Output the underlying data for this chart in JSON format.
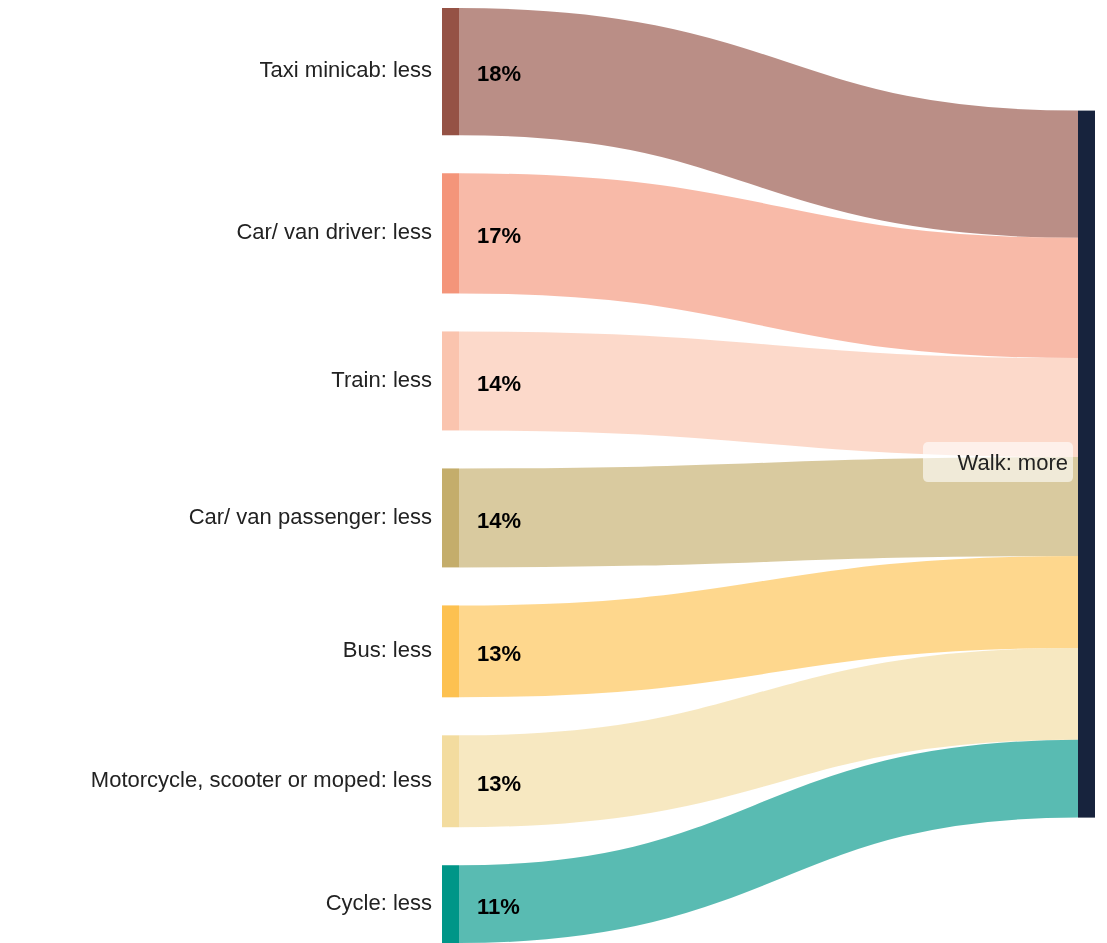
{
  "chart_data": {
    "type": "other",
    "categories": [
      "Taxi minicab: less",
      "Car/ van driver: less",
      "Train: less",
      "Car/ van passenger: less",
      "Bus: less",
      "Motorcycle, scooter or moped: less",
      "Cycle: less"
    ],
    "colors": [
      "#955245",
      "#f4957a",
      "#fac4ae",
      "#c4ad6b",
      "#fdc150",
      "#f3dc9f",
      "#009688"
    ],
    "series": [
      {
        "name": "Walk: more",
        "color": "#17233d",
        "values": [
          18,
          17,
          14,
          14,
          13,
          13,
          11
        ],
        "value_labels": [
          "18%",
          "17%",
          "14%",
          "14%",
          "13%",
          "13%",
          "11%"
        ]
      }
    ]
  }
}
